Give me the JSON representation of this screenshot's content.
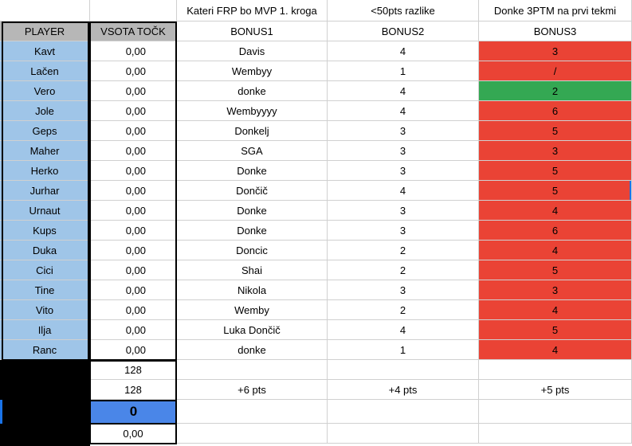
{
  "header": {
    "top_labels": [
      "Kateri FRP bo MVP 1. kroga",
      "<50pts razlike",
      "Donke 3PTM na prvi tekmi"
    ],
    "player_label": "PLAYER",
    "sum_label": "VSOTA TOČK",
    "bonus_labels": [
      "BONUS1",
      "BONUS2",
      "BONUS3"
    ]
  },
  "rows": [
    {
      "player": "Kavt",
      "sum": "0,00",
      "b1": "Davis",
      "b2": "4",
      "b3": "3",
      "b3_color": "#ea4335"
    },
    {
      "player": "Lačen",
      "sum": "0,00",
      "b1": "Wembyy",
      "b2": "1",
      "b3": "/",
      "b3_color": "#ea4335"
    },
    {
      "player": "Vero",
      "sum": "0,00",
      "b1": "donke",
      "b2": "4",
      "b3": "2",
      "b3_color": "#34a853"
    },
    {
      "player": "Jole",
      "sum": "0,00",
      "b1": "Wembyyyy",
      "b2": "4",
      "b3": "6",
      "b3_color": "#ea4335"
    },
    {
      "player": "Geps",
      "sum": "0,00",
      "b1": "Donkelj",
      "b2": "3",
      "b3": "5",
      "b3_color": "#ea4335"
    },
    {
      "player": "Maher",
      "sum": "0,00",
      "b1": "SGA",
      "b2": "3",
      "b3": "3",
      "b3_color": "#ea4335"
    },
    {
      "player": "Herko",
      "sum": "0,00",
      "b1": "Donke",
      "b2": "3",
      "b3": "5",
      "b3_color": "#ea4335"
    },
    {
      "player": "Jurhar",
      "sum": "0,00",
      "b1": "Dončič",
      "b2": "4",
      "b3": "5",
      "b3_color": "#ea4335"
    },
    {
      "player": "Urnaut",
      "sum": "0,00",
      "b1": "Donke",
      "b2": "3",
      "b3": "4",
      "b3_color": "#ea4335"
    },
    {
      "player": "Kups",
      "sum": "0,00",
      "b1": "Donke",
      "b2": "3",
      "b3": "6",
      "b3_color": "#ea4335"
    },
    {
      "player": "Duka",
      "sum": "0,00",
      "b1": "Doncic",
      "b2": "2",
      "b3": "4",
      "b3_color": "#ea4335"
    },
    {
      "player": "Cici",
      "sum": "0,00",
      "b1": "Shai",
      "b2": "2",
      "b3": "5",
      "b3_color": "#ea4335"
    },
    {
      "player": "Tine",
      "sum": "0,00",
      "b1": "Nikola",
      "b2": "3",
      "b3": "3",
      "b3_color": "#ea4335"
    },
    {
      "player": "Vito",
      "sum": "0,00",
      "b1": "Wemby",
      "b2": "2",
      "b3": "4",
      "b3_color": "#ea4335"
    },
    {
      "player": "Ilja",
      "sum": "0,00",
      "b1": "Luka Dončič",
      "b2": "4",
      "b3": "5",
      "b3_color": "#ea4335"
    },
    {
      "player": "Ranc",
      "sum": "0,00",
      "b1": "donke",
      "b2": "1",
      "b3": "4",
      "b3_color": "#ea4335"
    }
  ],
  "footer": {
    "row1_sum": "128",
    "row2_sum": "128",
    "bonus_points": [
      "+6 pts",
      "+4 pts",
      "+5 pts"
    ],
    "highlight_value": "0",
    "last_sum": "0,00"
  },
  "colors": {
    "header_gray": "#b7b7b7",
    "player_blue": "#9fc5e8",
    "wrong_red": "#ea4335",
    "correct_green": "#34a853",
    "highlight_blue": "#4a86e8"
  }
}
